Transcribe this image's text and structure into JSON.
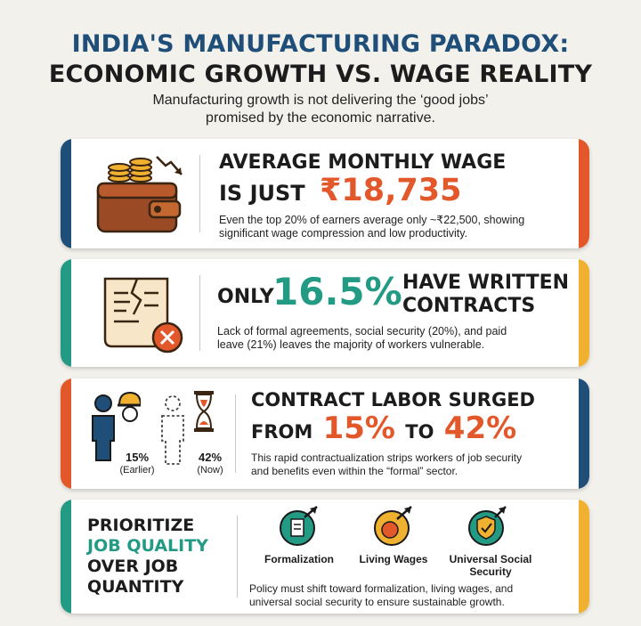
{
  "header": {
    "title_line1": "INDIA'S MANUFACTURING PARADOX:",
    "title_line2": "ECONOMIC GROWTH VS. WAGE REALITY",
    "subtitle_line1": "Manufacturing growth is not delivering the ‘good jobs’",
    "subtitle_line2": "promised by the economic narrative."
  },
  "card1": {
    "heading_line1": "AVERAGE MONTHLY WAGE",
    "heading_line2_prefix": "IS JUST",
    "value": "₹18,735",
    "body_line1": "Even the top 20% of earners average only ~₹22,500, showing",
    "body_line2": "significant wage compression and low productivity.",
    "icon": "wallet-coins-icon",
    "left_color": "#1f4e79",
    "right_color": "#e2582a"
  },
  "card2": {
    "prefix": "ONLY",
    "value": "16.5%",
    "heading_line1": "HAVE WRITTEN",
    "heading_line2": "CONTRACTS",
    "body_line1": "Lack of formal agreements, social security (20%), and paid",
    "body_line2": "leave (21%) leaves the majority of workers vulnerable.",
    "icon": "torn-contract-icon",
    "left_color": "#239a84",
    "right_color": "#f0b030"
  },
  "card3": {
    "heading_line1": "CONTRACT LABOR SURGED",
    "heading_line2_prefix": "FROM",
    "value_from": "15%",
    "to_word": "TO",
    "value_to": "42%",
    "body_line1": "This rapid contractualization strips workers of job security",
    "body_line2": "and benefits even within the “formal” sector.",
    "earlier_value": "15%",
    "earlier_label": "(Earlier)",
    "now_value": "42%",
    "now_label": "(Now)",
    "left_color": "#e2582a",
    "right_color": "#1f4e79"
  },
  "card4": {
    "heading_line1": "PRIORITIZE",
    "heading_line2": "JOB QUALITY",
    "heading_line3": "OVER JOB",
    "heading_line4": "QUANTITY",
    "items": [
      {
        "label": "Formalization",
        "icon": "document-arrow-icon"
      },
      {
        "label": "Living Wages",
        "icon": "coin-arrow-icon"
      },
      {
        "label_line1": "Universal Social",
        "label_line2": "Security",
        "icon": "shield-check-icon"
      }
    ],
    "body_line1": "Policy must shift toward formalization, living wages, and",
    "body_line2": "universal social security to ensure sustainable growth.",
    "left_color": "#239a84",
    "right_color": "#f0b030"
  }
}
